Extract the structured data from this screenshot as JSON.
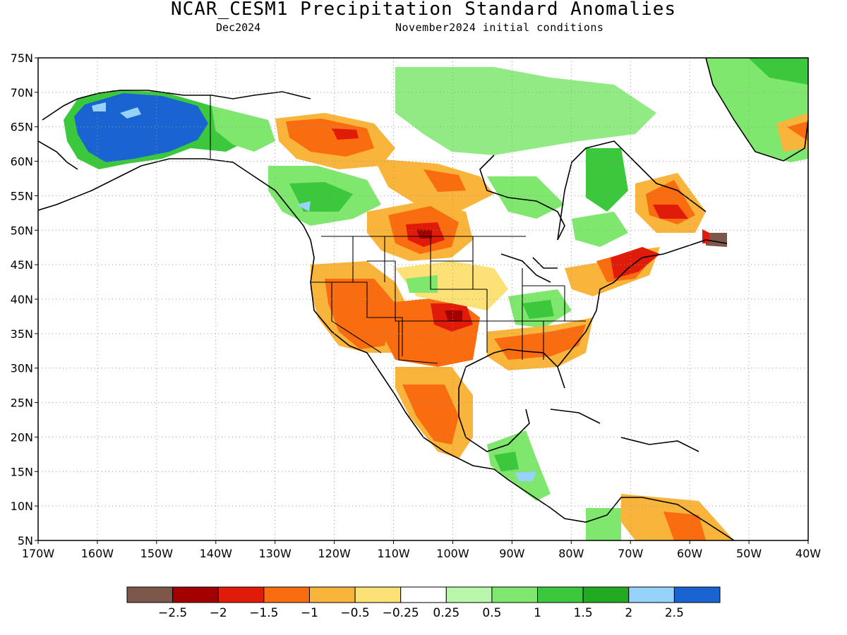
{
  "header": {
    "title": "NCAR_CESM1 Precipitation Standard Anomalies",
    "valid_month": "Dec2024",
    "initial_conditions": "November2024 initial conditions"
  },
  "map": {
    "lat_range": [
      5,
      75
    ],
    "lon_range": [
      -170,
      -40
    ],
    "lat_ticks": [
      "5N",
      "10N",
      "15N",
      "20N",
      "25N",
      "30N",
      "35N",
      "40N",
      "45N",
      "50N",
      "55N",
      "60N",
      "65N",
      "70N",
      "75N"
    ],
    "lon_ticks": [
      "170W",
      "160W",
      "150W",
      "140W",
      "130W",
      "120W",
      "110W",
      "100W",
      "90W",
      "80W",
      "70W",
      "60W",
      "50W",
      "40W"
    ],
    "gridlines": true
  },
  "colorbar": {
    "colors": [
      "#7d574a",
      "#a30000",
      "#e11b0a",
      "#f96c0f",
      "#f9b43c",
      "#fce177",
      "#ffffff",
      "#b9f7ad",
      "#7fe66e",
      "#3cc83c",
      "#22aa22",
      "#96d2fa",
      "#1a64d2"
    ],
    "labels": [
      "−2.5",
      "−2",
      "−1.5",
      "−1",
      "−0.5",
      "−0.25",
      "0.25",
      "0.5",
      "1",
      "1.5",
      "2",
      "2.5"
    ]
  }
}
